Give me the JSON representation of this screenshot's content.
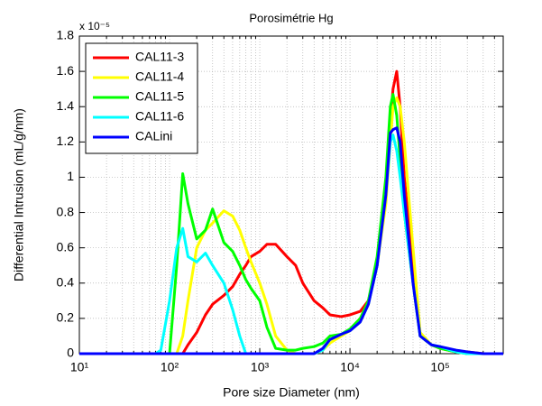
{
  "chart_data": {
    "type": "line",
    "title": "Porosimétrie Hg",
    "x_label": "Pore size Diameter (nm)",
    "y_label": "Differential Intrusion (mL/g/nm)",
    "y_scale_label": "x 10⁻⁵",
    "x_scale": "log",
    "grid": true,
    "legend": "upper left",
    "xlim": [
      10,
      500000
    ],
    "ylim": [
      0,
      1.8
    ],
    "xticks": [
      {
        "value": 10,
        "label": "10¹"
      },
      {
        "value": 100,
        "label": "10²"
      },
      {
        "value": 1000,
        "label": "10³"
      },
      {
        "value": 10000,
        "label": "10⁴"
      },
      {
        "value": 100000,
        "label": "10⁵"
      }
    ],
    "yticks": [
      0,
      0.2,
      0.4,
      0.6,
      0.8,
      1,
      1.2,
      1.4,
      1.6,
      1.8
    ],
    "x": [
      10,
      30,
      40,
      50,
      60,
      70,
      80,
      100,
      120,
      140,
      160,
      200,
      250,
      300,
      400,
      500,
      600,
      700,
      800,
      1000,
      1200,
      1500,
      2000,
      2500,
      3000,
      4000,
      5000,
      6000,
      8000,
      10000,
      13000,
      16000,
      20000,
      25000,
      28000,
      30000,
      33000,
      36000,
      40000,
      50000,
      60000,
      80000,
      100000,
      150000,
      200000,
      300000,
      500000
    ],
    "series": [
      {
        "name": "CAL11-3",
        "color": "#ff0000",
        "values": [
          0,
          0,
          0,
          0,
          0,
          0,
          0,
          0,
          0,
          0,
          0.05,
          0.12,
          0.22,
          0.28,
          0.33,
          0.38,
          0.45,
          0.5,
          0.55,
          0.58,
          0.62,
          0.62,
          0.55,
          0.5,
          0.4,
          0.3,
          0.26,
          0.22,
          0.21,
          0.22,
          0.24,
          0.3,
          0.5,
          0.9,
          1.3,
          1.5,
          1.6,
          1.4,
          1.0,
          0.5,
          0.1,
          0.05,
          0.03,
          0.01,
          0.01,
          0,
          0
        ]
      },
      {
        "name": "CAL11-4",
        "color": "#ffff00",
        "values": [
          0,
          0,
          0,
          0,
          0,
          0,
          0,
          0,
          0,
          0.1,
          0.3,
          0.6,
          0.7,
          0.74,
          0.81,
          0.78,
          0.7,
          0.6,
          0.52,
          0.4,
          0.28,
          0.1,
          0.02,
          0,
          0,
          0,
          0.02,
          0.06,
          0.1,
          0.13,
          0.18,
          0.28,
          0.5,
          0.85,
          1.2,
          1.4,
          1.45,
          1.4,
          1.2,
          0.6,
          0.12,
          0.05,
          0.03,
          0.01,
          0,
          0,
          0
        ]
      },
      {
        "name": "CAL11-5",
        "color": "#00ff00",
        "values": [
          0,
          0,
          0,
          0,
          0,
          0,
          0,
          0,
          0.5,
          1.02,
          0.85,
          0.65,
          0.7,
          0.82,
          0.63,
          0.58,
          0.5,
          0.42,
          0.37,
          0.3,
          0.15,
          0.03,
          0.02,
          0.02,
          0.03,
          0.04,
          0.06,
          0.1,
          0.11,
          0.14,
          0.2,
          0.3,
          0.55,
          1.0,
          1.4,
          1.47,
          1.35,
          1.1,
          0.8,
          0.4,
          0.1,
          0.05,
          0.03,
          0.01,
          0,
          0,
          0
        ]
      },
      {
        "name": "CAL11-6",
        "color": "#00ffff",
        "values": [
          0,
          0,
          0,
          0,
          0,
          0,
          0.02,
          0.3,
          0.6,
          0.71,
          0.55,
          0.52,
          0.57,
          0.5,
          0.4,
          0.25,
          0.1,
          0,
          0,
          0,
          0,
          0,
          0,
          0,
          0,
          0,
          0.02,
          0.08,
          0.11,
          0.13,
          0.18,
          0.28,
          0.5,
          0.9,
          1.2,
          1.24,
          1.15,
          1.0,
          0.8,
          0.4,
          0.1,
          0.05,
          0.04,
          0.01,
          0,
          0,
          0
        ]
      },
      {
        "name": "CALini",
        "color": "#0000ff",
        "values": [
          0,
          0,
          0,
          0,
          0,
          0,
          0,
          0,
          0,
          0,
          0,
          0,
          0,
          0,
          0,
          0,
          0,
          0,
          0,
          0,
          0,
          0,
          0,
          0,
          0,
          0,
          0.03,
          0.08,
          0.11,
          0.13,
          0.18,
          0.28,
          0.5,
          0.9,
          1.25,
          1.27,
          1.28,
          1.2,
          0.9,
          0.4,
          0.1,
          0.05,
          0.04,
          0.02,
          0.01,
          0,
          0
        ]
      }
    ]
  }
}
